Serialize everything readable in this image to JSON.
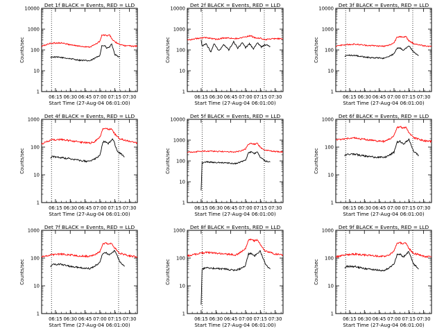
{
  "figure": {
    "start_time_label": "Start Time (27-Aug-04 06:01:00)",
    "ylabel": "Counts/sec",
    "x_tick_labels": [
      "06:15",
      "06:30",
      "06:45",
      "07:00",
      "07:15",
      "07:30"
    ],
    "y_tick_labels": [
      "1",
      "10",
      "100",
      "1000",
      "10000"
    ],
    "colors": {
      "events": "#000000",
      "lld": "#ff0000",
      "axes": "#000000",
      "dotted": "#000000"
    }
  },
  "chart_data": [
    {
      "type": "line",
      "title": "Det 1f BLACK = Events, RED = LLD",
      "xlim": [
        "06:01",
        "07:38"
      ],
      "ylim": [
        1,
        10000
      ],
      "yscale": "log",
      "markers": [
        "06:11",
        "07:20"
      ],
      "series": [
        {
          "name": "Events",
          "x": [
            "06:10",
            "06:12",
            "06:20",
            "06:30",
            "06:40",
            "06:50",
            "06:55",
            "07:00",
            "07:02",
            "07:05",
            "07:07",
            "07:10",
            "07:12",
            "07:15",
            "07:20"
          ],
          "values": [
            45,
            46,
            44,
            38,
            32,
            30,
            40,
            55,
            160,
            160,
            120,
            140,
            200,
            60,
            45
          ]
        },
        {
          "name": "LLD",
          "x": [
            "06:01",
            "06:10",
            "06:20",
            "06:30",
            "06:40",
            "06:50",
            "06:55",
            "07:00",
            "07:02",
            "07:05",
            "07:08",
            "07:10",
            "07:13",
            "07:18",
            "07:25",
            "07:38"
          ],
          "values": [
            150,
            210,
            220,
            180,
            150,
            140,
            180,
            260,
            500,
            520,
            480,
            520,
            300,
            200,
            160,
            150
          ]
        }
      ]
    },
    {
      "type": "line",
      "title": "Det 2f BLACK = Events, RED = LLD",
      "xlim": [
        "06:01",
        "07:38"
      ],
      "ylim": [
        1,
        10000
      ],
      "yscale": "log",
      "markers": [
        "06:16",
        "07:19"
      ],
      "series": [
        {
          "name": "Events",
          "x": [
            "06:15",
            "06:16",
            "06:20",
            "06:25",
            "06:28",
            "06:33",
            "06:38",
            "06:43",
            "06:48",
            "06:52",
            "06:57",
            "07:00",
            "07:04",
            "07:08",
            "07:12",
            "07:16",
            "07:20",
            "07:25"
          ],
          "values": [
            300,
            150,
            200,
            80,
            200,
            90,
            180,
            100,
            250,
            120,
            230,
            130,
            200,
            110,
            220,
            140,
            180,
            150
          ]
        },
        {
          "name": "LLD",
          "x": [
            "06:01",
            "06:10",
            "06:20",
            "06:30",
            "06:40",
            "06:50",
            "07:00",
            "07:05",
            "07:10",
            "07:15",
            "07:20",
            "07:30",
            "07:38"
          ],
          "values": [
            300,
            350,
            400,
            330,
            380,
            350,
            420,
            480,
            380,
            360,
            320,
            350,
            340
          ]
        }
      ]
    },
    {
      "type": "line",
      "title": "Det 3f BLACK = Events, RED = LLD",
      "xlim": [
        "06:01",
        "07:38"
      ],
      "ylim": [
        1,
        10000
      ],
      "yscale": "log",
      "markers": [
        "06:11",
        "07:19"
      ],
      "series": [
        {
          "name": "Events",
          "x": [
            "06:10",
            "06:12",
            "06:20",
            "06:30",
            "06:40",
            "06:50",
            "06:55",
            "07:00",
            "07:03",
            "07:06",
            "07:09",
            "07:12",
            "07:15",
            "07:20",
            "07:25"
          ],
          "values": [
            50,
            55,
            55,
            45,
            42,
            40,
            50,
            65,
            120,
            130,
            100,
            120,
            160,
            80,
            55
          ]
        },
        {
          "name": "LLD",
          "x": [
            "06:01",
            "06:10",
            "06:20",
            "06:30",
            "06:40",
            "06:50",
            "06:55",
            "07:00",
            "07:03",
            "07:06",
            "07:09",
            "07:12",
            "07:15",
            "07:20",
            "07:30",
            "07:38"
          ],
          "values": [
            150,
            180,
            190,
            170,
            160,
            150,
            170,
            220,
            420,
            450,
            400,
            440,
            280,
            200,
            160,
            150
          ]
        }
      ]
    },
    {
      "type": "line",
      "title": "Det 4f BLACK = Events, RED = LLD",
      "xlim": [
        "06:01",
        "07:38"
      ],
      "ylim": [
        1,
        1000
      ],
      "yscale": "log",
      "markers": [
        "06:11",
        "07:19"
      ],
      "series": [
        {
          "name": "Events",
          "x": [
            "06:10",
            "06:12",
            "06:20",
            "06:30",
            "06:40",
            "06:50",
            "06:55",
            "07:00",
            "07:03",
            "07:05",
            "07:08",
            "07:10",
            "07:13",
            "07:18",
            "07:25"
          ],
          "values": [
            40,
            45,
            42,
            38,
            33,
            30,
            38,
            50,
            150,
            160,
            130,
            150,
            200,
            70,
            45
          ]
        },
        {
          "name": "LLD",
          "x": [
            "06:01",
            "06:10",
            "06:20",
            "06:30",
            "06:40",
            "06:50",
            "06:55",
            "07:00",
            "07:03",
            "07:06",
            "07:09",
            "07:12",
            "07:15",
            "07:20",
            "07:30",
            "07:38"
          ],
          "values": [
            130,
            180,
            190,
            170,
            150,
            140,
            160,
            230,
            450,
            480,
            420,
            460,
            300,
            200,
            160,
            140
          ]
        }
      ]
    },
    {
      "type": "line",
      "title": "Det 5f BLACK = Events, RED = LLD",
      "xlim": [
        "06:01",
        "07:38"
      ],
      "ylim": [
        1,
        10000
      ],
      "yscale": "log",
      "markers": [
        "06:16",
        "07:19"
      ],
      "series": [
        {
          "name": "Events",
          "x": [
            "06:15",
            "06:16",
            "06:20",
            "06:30",
            "06:40",
            "06:50",
            "06:55",
            "07:00",
            "07:03",
            "07:06",
            "07:09",
            "07:12",
            "07:15",
            "07:20",
            "07:25"
          ],
          "values": [
            4,
            80,
            90,
            85,
            80,
            75,
            90,
            110,
            250,
            270,
            230,
            260,
            150,
            100,
            90
          ]
        },
        {
          "name": "LLD",
          "x": [
            "06:01",
            "06:10",
            "06:20",
            "06:30",
            "06:40",
            "06:50",
            "06:55",
            "07:00",
            "07:03",
            "07:06",
            "07:09",
            "07:12",
            "07:15",
            "07:20",
            "07:30",
            "07:38"
          ],
          "values": [
            260,
            280,
            300,
            290,
            280,
            270,
            300,
            380,
            650,
            700,
            650,
            700,
            450,
            330,
            280,
            270
          ]
        }
      ]
    },
    {
      "type": "line",
      "title": "Det 6f BLACK = Events, RED = LLD",
      "xlim": [
        "06:01",
        "07:38"
      ],
      "ylim": [
        1,
        1000
      ],
      "yscale": "log",
      "markers": [
        "06:11",
        "07:19"
      ],
      "series": [
        {
          "name": "Events",
          "x": [
            "06:10",
            "06:12",
            "06:20",
            "06:30",
            "06:40",
            "06:50",
            "06:55",
            "07:00",
            "07:03",
            "07:06",
            "07:09",
            "07:12",
            "07:15",
            "07:20",
            "07:25"
          ],
          "values": [
            50,
            55,
            55,
            48,
            44,
            42,
            50,
            65,
            150,
            160,
            130,
            150,
            190,
            70,
            50
          ]
        },
        {
          "name": "LLD",
          "x": [
            "06:01",
            "06:10",
            "06:20",
            "06:30",
            "06:40",
            "06:50",
            "06:55",
            "07:00",
            "07:03",
            "07:06",
            "07:09",
            "07:12",
            "07:15",
            "07:20",
            "07:30",
            "07:38"
          ],
          "values": [
            180,
            200,
            210,
            190,
            170,
            160,
            190,
            260,
            500,
            550,
            480,
            520,
            330,
            220,
            170,
            160
          ]
        }
      ]
    },
    {
      "type": "line",
      "title": "Det 7f BLACK = Events, RED = LLD",
      "xlim": [
        "06:01",
        "07:38"
      ],
      "ylim": [
        1,
        1000
      ],
      "yscale": "log",
      "markers": [
        "06:11",
        "07:19"
      ],
      "series": [
        {
          "name": "Events",
          "x": [
            "06:10",
            "06:12",
            "06:20",
            "06:30",
            "06:40",
            "06:50",
            "06:55",
            "07:00",
            "07:03",
            "07:06",
            "07:09",
            "07:12",
            "07:15",
            "07:20",
            "07:25"
          ],
          "values": [
            50,
            58,
            60,
            50,
            45,
            42,
            52,
            70,
            150,
            160,
            130,
            150,
            190,
            75,
            50
          ]
        },
        {
          "name": "LLD",
          "x": [
            "06:01",
            "06:10",
            "06:20",
            "06:30",
            "06:40",
            "06:50",
            "06:55",
            "07:00",
            "07:03",
            "07:06",
            "07:09",
            "07:12",
            "07:15",
            "07:20",
            "07:30",
            "07:38"
          ],
          "values": [
            110,
            130,
            140,
            130,
            120,
            115,
            130,
            170,
            320,
            350,
            310,
            340,
            230,
            150,
            120,
            110
          ]
        }
      ]
    },
    {
      "type": "line",
      "title": "Det 8f BLACK = Events, RED = LLD",
      "xlim": [
        "06:01",
        "07:38"
      ],
      "ylim": [
        1,
        1000
      ],
      "yscale": "log",
      "markers": [
        "06:16",
        "07:19"
      ],
      "series": [
        {
          "name": "Events",
          "x": [
            "06:15",
            "06:16",
            "06:20",
            "06:30",
            "06:40",
            "06:50",
            "06:55",
            "07:00",
            "07:03",
            "07:06",
            "07:09",
            "07:12",
            "07:15",
            "07:20",
            "07:25"
          ],
          "values": [
            2,
            40,
            45,
            42,
            40,
            36,
            42,
            55,
            140,
            150,
            120,
            140,
            180,
            60,
            40
          ]
        },
        {
          "name": "LLD",
          "x": [
            "06:01",
            "06:10",
            "06:20",
            "06:30",
            "06:40",
            "06:50",
            "06:55",
            "07:00",
            "07:03",
            "07:06",
            "07:09",
            "07:12",
            "07:15",
            "07:20",
            "07:30",
            "07:38"
          ],
          "values": [
            120,
            140,
            160,
            150,
            140,
            130,
            160,
            220,
            450,
            480,
            420,
            460,
            300,
            180,
            140,
            130
          ]
        }
      ]
    },
    {
      "type": "line",
      "title": "Det 9f BLACK = Events, RED = LLD",
      "xlim": [
        "06:01",
        "07:38"
      ],
      "ylim": [
        1,
        1000
      ],
      "yscale": "log",
      "markers": [
        "06:11",
        "07:19"
      ],
      "series": [
        {
          "name": "Events",
          "x": [
            "06:10",
            "06:12",
            "06:20",
            "06:30",
            "06:40",
            "06:50",
            "06:55",
            "07:00",
            "07:03",
            "07:06",
            "07:09",
            "07:12",
            "07:15",
            "07:20",
            "07:25"
          ],
          "values": [
            45,
            50,
            50,
            42,
            38,
            35,
            45,
            60,
            130,
            140,
            110,
            130,
            170,
            60,
            40
          ]
        },
        {
          "name": "LLD",
          "x": [
            "06:01",
            "06:10",
            "06:20",
            "06:30",
            "06:40",
            "06:50",
            "06:55",
            "07:00",
            "07:03",
            "07:06",
            "07:09",
            "07:12",
            "07:15",
            "07:20",
            "07:30",
            "07:38"
          ],
          "values": [
            110,
            130,
            140,
            130,
            120,
            115,
            130,
            180,
            330,
            360,
            320,
            350,
            220,
            150,
            115,
            110
          ]
        }
      ]
    }
  ]
}
